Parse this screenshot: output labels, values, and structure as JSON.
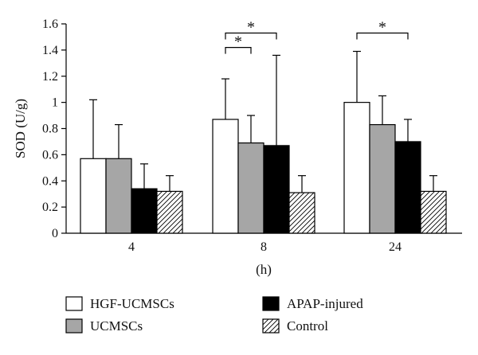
{
  "chart_data": {
    "type": "bar",
    "ylabel": "SOD (U/g)",
    "xlabel": "(h)",
    "ylim": [
      0,
      1.6
    ],
    "yticks": [
      0,
      0.2,
      0.4,
      0.6,
      0.8,
      1,
      1.2,
      1.4,
      1.6
    ],
    "ytick_labels": [
      "0",
      "0.2",
      "0.4",
      "0.6",
      "0.8",
      "1",
      "1.2",
      "1.4",
      "1.6"
    ],
    "categories": [
      "4",
      "8",
      "24"
    ],
    "series": [
      {
        "name": "HGF-UCMSCs",
        "fill": "#ffffff",
        "pattern": "none",
        "values": [
          0.57,
          0.87,
          1.0
        ],
        "errors": [
          0.45,
          0.31,
          0.39
        ]
      },
      {
        "name": "UCMSCs",
        "fill": "#a6a6a6",
        "pattern": "none",
        "values": [
          0.57,
          0.69,
          0.83
        ],
        "errors": [
          0.26,
          0.21,
          0.22
        ]
      },
      {
        "name": "APAP-injured",
        "fill": "#000000",
        "pattern": "none",
        "values": [
          0.34,
          0.67,
          0.7
        ],
        "errors": [
          0.19,
          0.69,
          0.17
        ]
      },
      {
        "name": "Control",
        "fill": "#ffffff",
        "pattern": "hatch",
        "values": [
          0.32,
          0.31,
          0.32
        ],
        "errors": [
          0.12,
          0.13,
          0.12
        ]
      }
    ],
    "significance": [
      {
        "category": "8",
        "from_series": 0,
        "to_series": 1,
        "bracket_y": 1.42,
        "label": "*"
      },
      {
        "category": "8",
        "from_series": 0,
        "to_series": 2,
        "bracket_y": 1.53,
        "label": "*"
      },
      {
        "category": "24",
        "from_series": 0,
        "to_series": 2,
        "bracket_y": 1.53,
        "label": "*"
      }
    ],
    "legend": {
      "placement": "bottom",
      "columns": 2,
      "order": [
        "HGF-UCMSCs",
        "APAP-injured",
        "UCMSCs",
        "Control"
      ]
    },
    "grid": false
  }
}
